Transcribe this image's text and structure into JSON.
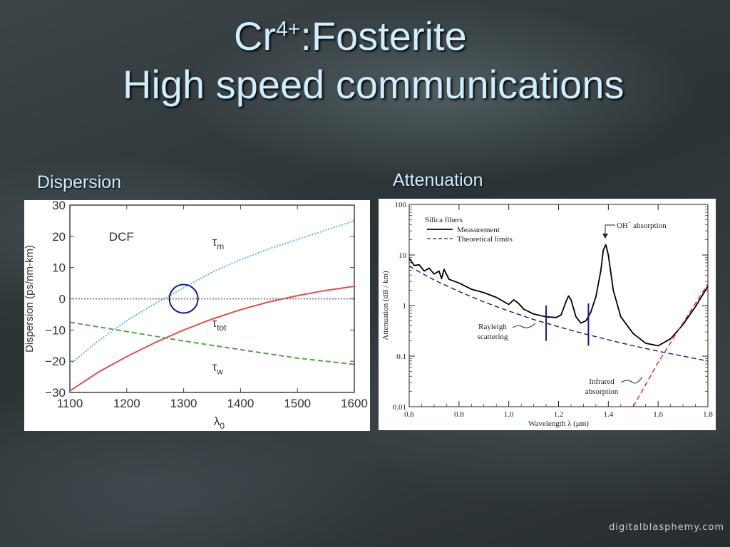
{
  "slide": {
    "title_main": "Cr",
    "title_sup": "4+",
    "title_rest": ":Fosterite",
    "subtitle": "High speed communications",
    "watermark": "digitalblasphemy.com"
  },
  "chart_data": [
    {
      "panel_label": "Dispersion",
      "type": "line",
      "xlabel": "λ0",
      "ylabel": "Dispersion (ps/nm-km)",
      "xlim": [
        1100,
        1600
      ],
      "ylim": [
        -30,
        30
      ],
      "xticks": [
        1100,
        1200,
        1300,
        1400,
        1500,
        1600
      ],
      "yticks": [
        30,
        20,
        10,
        0,
        -10,
        -20,
        -30
      ],
      "xtick_labels": [
        "1100",
        "1200",
        "1300",
        "1400",
        "1500",
        "1600"
      ],
      "ytick_labels": [
        "30",
        "20",
        "10",
        "0",
        "−10",
        "−20",
        "−30"
      ],
      "grid": false,
      "annotation_text": "DCF",
      "series": [
        {
          "name": "τm",
          "label_base": "τ",
          "label_sub": "m",
          "color": "#6ab4ee",
          "style": "dotted",
          "x": [
            1100,
            1150,
            1200,
            1250,
            1280,
            1300,
            1350,
            1400,
            1450,
            1500,
            1550,
            1600
          ],
          "y": [
            -21,
            -13.5,
            -7,
            -1.5,
            1.5,
            3.5,
            8.5,
            12.5,
            16,
            19,
            22,
            25
          ]
        },
        {
          "name": "τtot",
          "label_base": "τ",
          "label_sub": "tot",
          "color": "#e0504c",
          "style": "solid",
          "x": [
            1100,
            1150,
            1200,
            1250,
            1300,
            1350,
            1400,
            1450,
            1500,
            1550,
            1600
          ],
          "y": [
            -29.5,
            -23.5,
            -18.5,
            -14,
            -10,
            -6.5,
            -3.5,
            -1,
            1,
            2.7,
            4
          ]
        },
        {
          "name": "τw",
          "label_base": "τ",
          "label_sub": "w",
          "color": "#5aa050",
          "style": "dashed",
          "x": [
            1100,
            1200,
            1300,
            1400,
            1500,
            1600
          ],
          "y": [
            -7.5,
            -10.5,
            -13.5,
            -16.3,
            -19,
            -21
          ]
        },
        {
          "name": "zero",
          "label_base": "",
          "label_sub": "",
          "color": "#888888",
          "style": "dotted",
          "x": [
            1100,
            1600
          ],
          "y": [
            0,
            0
          ]
        }
      ],
      "marker": {
        "shape": "circle",
        "x": 1300,
        "y": 0,
        "color": "#1a1a8c"
      }
    },
    {
      "panel_label": "Attenuation",
      "type": "line",
      "xlabel": "Wavelength  λ  (μm)",
      "ylabel": "Attenuation  (dB / km)",
      "xscale": "linear",
      "yscale": "log",
      "xlim": [
        0.6,
        1.8
      ],
      "ylim": [
        0.01,
        100
      ],
      "xticks": [
        0.6,
        0.8,
        1.0,
        1.2,
        1.4,
        1.6,
        1.8
      ],
      "xtick_labels": [
        "0.6",
        "0.8",
        "1.0",
        "1.2",
        "1.4",
        "1.6",
        "1.8"
      ],
      "yticks": [
        0.01,
        0.1,
        1,
        10,
        100
      ],
      "ytick_labels": [
        "0.01",
        "0.1",
        "1",
        "10",
        "100"
      ],
      "grid": false,
      "legend": {
        "position": "top-left",
        "title": "Silica fibers",
        "entries": [
          {
            "label": "Measurement",
            "style": "solid",
            "color": "#000000"
          },
          {
            "label": "Theoretical limits",
            "style": "dashed",
            "color": "#1a1a8c"
          }
        ]
      },
      "annotations": {
        "oh_base": "OH",
        "oh_sup": "−",
        "oh_rest": " absorption",
        "rayleigh_line1": "Rayleigh",
        "rayleigh_line2": "scattering",
        "infrared_line1": "Infrared",
        "infrared_line2": "absorption"
      },
      "series": [
        {
          "name": "Measurement",
          "color": "#000000",
          "style": "solid",
          "x": [
            0.6,
            0.62,
            0.64,
            0.66,
            0.68,
            0.7,
            0.72,
            0.73,
            0.74,
            0.76,
            0.8,
            0.85,
            0.9,
            0.95,
            1.0,
            1.02,
            1.04,
            1.06,
            1.1,
            1.15,
            1.19,
            1.21,
            1.23,
            1.24,
            1.25,
            1.27,
            1.29,
            1.31,
            1.33,
            1.35,
            1.37,
            1.38,
            1.39,
            1.4,
            1.42,
            1.45,
            1.5,
            1.55,
            1.6,
            1.65,
            1.7,
            1.75,
            1.8
          ],
          "y": [
            8.5,
            6.2,
            6.4,
            4.8,
            5.5,
            4.2,
            4.8,
            3.4,
            5.2,
            3.3,
            2.8,
            2.1,
            1.8,
            1.45,
            1.05,
            1.3,
            1.1,
            0.85,
            0.68,
            0.6,
            0.58,
            0.65,
            1.2,
            1.55,
            1.3,
            0.6,
            0.45,
            0.5,
            0.75,
            1.5,
            5.0,
            12.5,
            16.0,
            10.0,
            2.0,
            0.6,
            0.28,
            0.18,
            0.16,
            0.22,
            0.42,
            0.95,
            2.4
          ]
        },
        {
          "name": "Theoretical limits",
          "color": "#1a1a8c",
          "style": "dashed",
          "x": [
            0.6,
            0.7,
            0.8,
            0.9,
            1.0,
            1.1,
            1.2,
            1.3,
            1.4,
            1.5,
            1.6,
            1.7,
            1.8
          ],
          "y": [
            6.0,
            3.2,
            1.9,
            1.18,
            0.78,
            0.53,
            0.38,
            0.28,
            0.21,
            0.16,
            0.125,
            0.1,
            0.08
          ]
        },
        {
          "name": "Infrared absorption",
          "color": "#dd2222",
          "style": "dashed",
          "x": [
            1.5,
            1.6,
            1.7,
            1.8
          ],
          "y": [
            0.01,
            0.075,
            0.45,
            2.7
          ]
        }
      ],
      "markers": [
        {
          "shape": "vline",
          "x": 1.15,
          "y_from": 0.2,
          "y_to": 1.0,
          "color": "#1a1a8c"
        },
        {
          "shape": "vline",
          "x": 1.32,
          "y_from": 0.16,
          "y_to": 1.1,
          "color": "#1a1a8c"
        }
      ]
    }
  ]
}
